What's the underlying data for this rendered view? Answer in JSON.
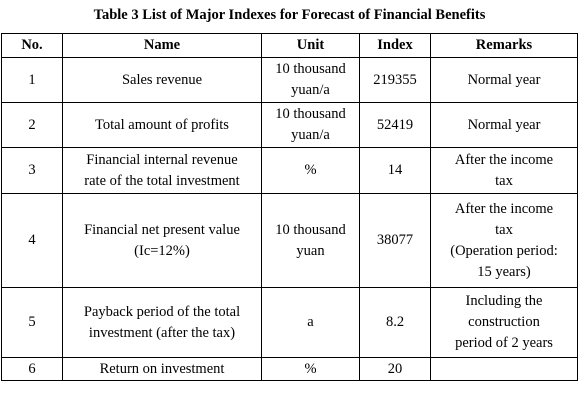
{
  "caption": "Table 3 List of Major Indexes for Forecast of Financial Benefits",
  "headers": {
    "no": "No.",
    "name": "Name",
    "unit": "Unit",
    "index": "Index",
    "remarks": "Remarks"
  },
  "rows": [
    {
      "no": "1",
      "name": [
        "Sales revenue"
      ],
      "unit": [
        "10 thousand",
        "yuan/a"
      ],
      "index": "219355",
      "remarks": [
        "Normal year"
      ]
    },
    {
      "no": "2",
      "name": [
        "Total amount of profits"
      ],
      "unit": [
        "10 thousand",
        "yuan/a"
      ],
      "index": "52419",
      "remarks": [
        "Normal year"
      ]
    },
    {
      "no": "3",
      "name": [
        "Financial internal revenue",
        "rate of the total investment"
      ],
      "unit": [
        "%"
      ],
      "index": "14",
      "remarks": [
        "After the income",
        "tax"
      ]
    },
    {
      "no": "4",
      "name": [
        "Financial net present value",
        "(Ic=12%)"
      ],
      "unit": [
        "10 thousand",
        "yuan"
      ],
      "index": "38077",
      "remarks": [
        "After the income",
        "tax",
        "(Operation period:",
        "15 years)"
      ]
    },
    {
      "no": "5",
      "name": [
        "Payback period of the total",
        "investment (after the tax)"
      ],
      "unit": [
        "a"
      ],
      "index": "8.2",
      "remarks": [
        "Including the",
        "construction",
        "period of 2 years"
      ]
    },
    {
      "no": "6",
      "name": [
        "Return on investment"
      ],
      "unit": [
        "%"
      ],
      "index": "20",
      "remarks": [
        ""
      ]
    }
  ]
}
